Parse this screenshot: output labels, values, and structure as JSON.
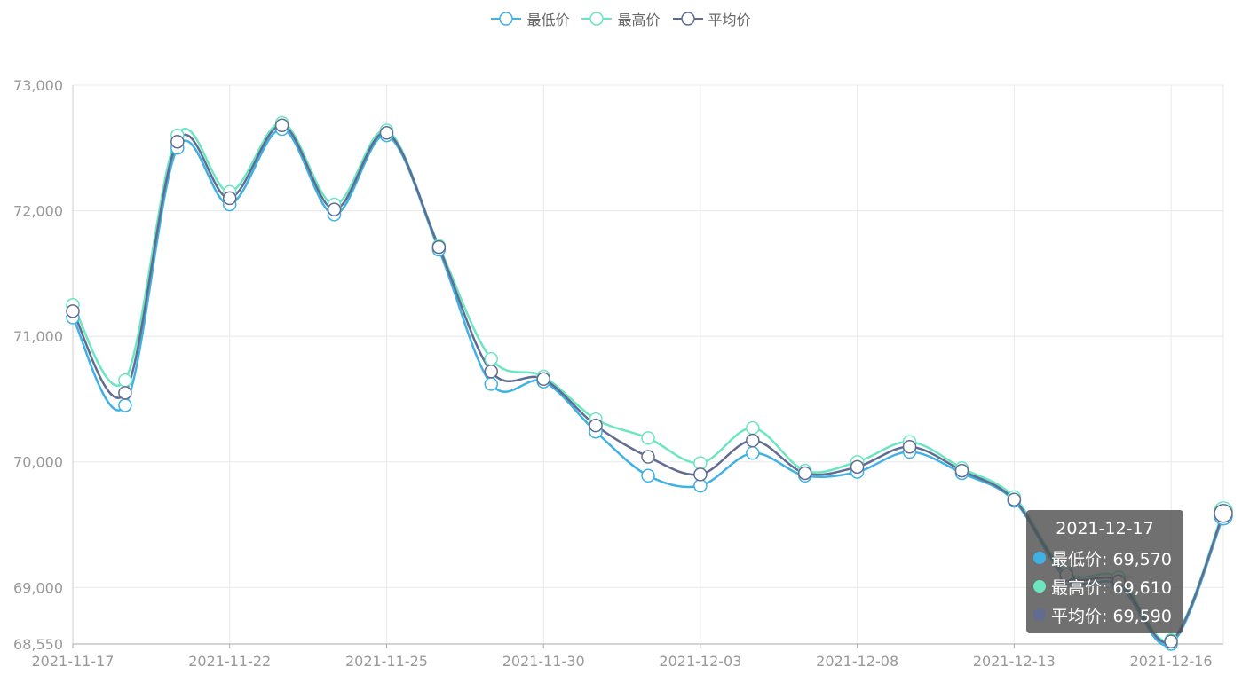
{
  "legend": [
    {
      "name": "最低价",
      "color": "#3FB1E3"
    },
    {
      "name": "最高价",
      "color": "#6BE6C1"
    },
    {
      "name": "平均价",
      "color": "#626C91"
    }
  ],
  "tooltip": {
    "title": "2021-12-17",
    "rows": [
      {
        "label": "最低价: 69,570",
        "color": "#3FB1E3"
      },
      {
        "label": "最高价: 69,610",
        "color": "#6BE6C1"
      },
      {
        "label": "平均价: 69,590",
        "color": "#626C91"
      }
    ]
  },
  "chart_data": {
    "type": "line",
    "x": [
      "2021-11-17",
      "2021-11-18",
      "2021-11-19",
      "2021-11-22",
      "2021-11-23",
      "2021-11-24",
      "2021-11-25",
      "2021-11-26",
      "2021-11-29",
      "2021-11-30",
      "2021-12-01",
      "2021-12-02",
      "2021-12-03",
      "2021-12-06",
      "2021-12-07",
      "2021-12-08",
      "2021-12-09",
      "2021-12-10",
      "2021-12-13",
      "2021-12-14",
      "2021-12-15",
      "2021-12-16",
      "2021-12-17"
    ],
    "x_tick_labels": [
      "2021-11-17",
      "2021-11-22",
      "2021-11-25",
      "2021-11-30",
      "2021-12-03",
      "2021-12-08",
      "2021-12-13",
      "2021-12-16"
    ],
    "series": [
      {
        "name": "最低价",
        "color": "#3FB1E3",
        "values": [
          71150,
          70450,
          72500,
          72050,
          72650,
          71970,
          72600,
          71690,
          70620,
          70640,
          70240,
          69890,
          69810,
          70070,
          69890,
          69920,
          70080,
          69910,
          69690,
          69070,
          69020,
          68550,
          69570
        ]
      },
      {
        "name": "最高价",
        "color": "#6BE6C1",
        "values": [
          71250,
          70650,
          72600,
          72150,
          72700,
          72050,
          72640,
          71720,
          70820,
          70680,
          70340,
          70190,
          69990,
          70270,
          69930,
          70000,
          70160,
          69950,
          69720,
          69120,
          69080,
          68580,
          69610
        ]
      },
      {
        "name": "平均价",
        "color": "#626C91",
        "values": [
          71200,
          70550,
          72550,
          72100,
          72680,
          72010,
          72620,
          71710,
          70720,
          70660,
          70290,
          70040,
          69900,
          70170,
          69910,
          69960,
          70120,
          69930,
          69700,
          69100,
          69050,
          68570,
          69590
        ]
      }
    ],
    "y_ticks": [
      "68,550",
      "69,000",
      "70,000",
      "71,000",
      "72,000",
      "73,000"
    ],
    "ylim": [
      68550,
      73000
    ],
    "grid": true,
    "legend_position": "top-center",
    "smooth": true
  }
}
